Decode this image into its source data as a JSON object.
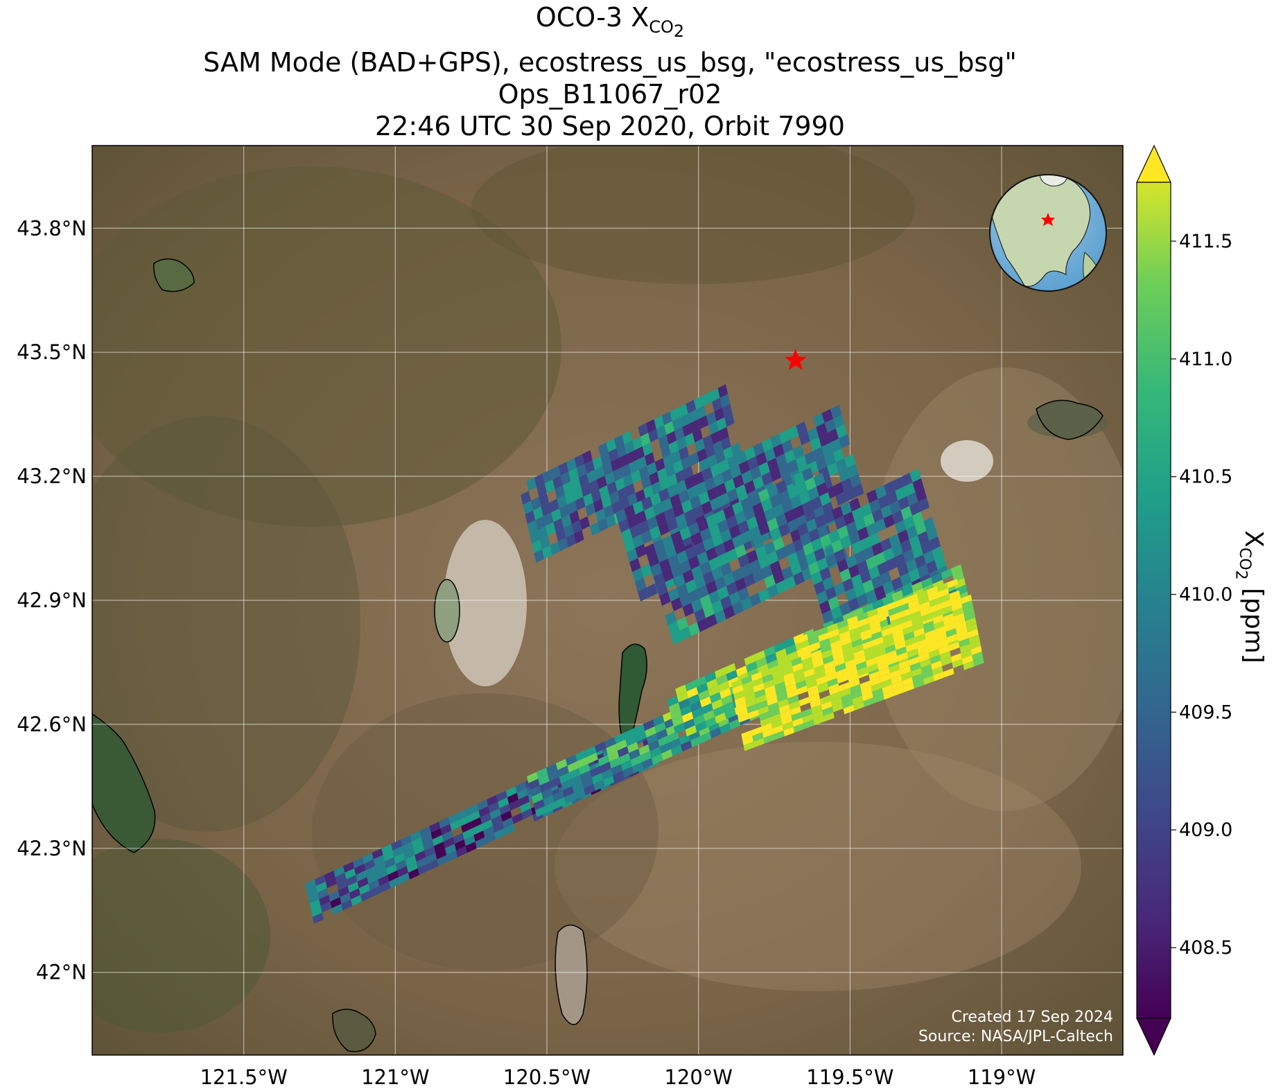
{
  "title": {
    "line1_prefix": "OCO-3 X",
    "line1_sub": "CO",
    "line1_subsub": "2",
    "line2": "SAM Mode (BAD+GPS), ecostress_us_bsg, \"ecostress_us_bsg\"",
    "line3": "Ops_B11067_r02",
    "line4": "22:46 UTC 30 Sep 2020, Orbit 7990"
  },
  "map": {
    "lon_ticks": [
      {
        "value": -121.5,
        "label": "121.5°W"
      },
      {
        "value": -121.0,
        "label": "121°W"
      },
      {
        "value": -120.5,
        "label": "120.5°W"
      },
      {
        "value": -120.0,
        "label": "120°W"
      },
      {
        "value": -119.5,
        "label": "119.5°W"
      },
      {
        "value": -119.0,
        "label": "119°W"
      }
    ],
    "lat_ticks": [
      {
        "value": 43.8,
        "label": "43.8°N"
      },
      {
        "value": 43.5,
        "label": "43.5°N"
      },
      {
        "value": 43.2,
        "label": "43.2°N"
      },
      {
        "value": 42.9,
        "label": "42.9°N"
      },
      {
        "value": 42.6,
        "label": "42.6°N"
      },
      {
        "value": 42.3,
        "label": "42.3°N"
      },
      {
        "value": 42.0,
        "label": "42°N"
      }
    ],
    "lon_range": [
      -122.0,
      -118.6
    ],
    "lat_range": [
      41.8,
      44.0
    ],
    "gridlines": true,
    "target_marker": {
      "lon": -119.68,
      "lat": 43.48,
      "color": "#ff0000"
    },
    "inset_globe": "globe-north-america-with-red-star"
  },
  "colorbar": {
    "colormap": "viridis",
    "range": [
      408.2,
      411.75
    ],
    "ticks": [
      {
        "value": 408.5,
        "label": "408.5"
      },
      {
        "value": 409.0,
        "label": "409.0"
      },
      {
        "value": 409.5,
        "label": "409.5"
      },
      {
        "value": 410.0,
        "label": "410.0"
      },
      {
        "value": 410.5,
        "label": "410.5"
      },
      {
        "value": 411.0,
        "label": "411.0"
      },
      {
        "value": 411.5,
        "label": "411.5"
      }
    ],
    "label_prefix": "X",
    "label_sub": "CO",
    "label_subsub": "2",
    "label_suffix": " [ppm]",
    "extend": "both"
  },
  "credit": {
    "created": "Created 17 Sep 2024",
    "source": "Source: NASA/JPL-Caltech"
  }
}
